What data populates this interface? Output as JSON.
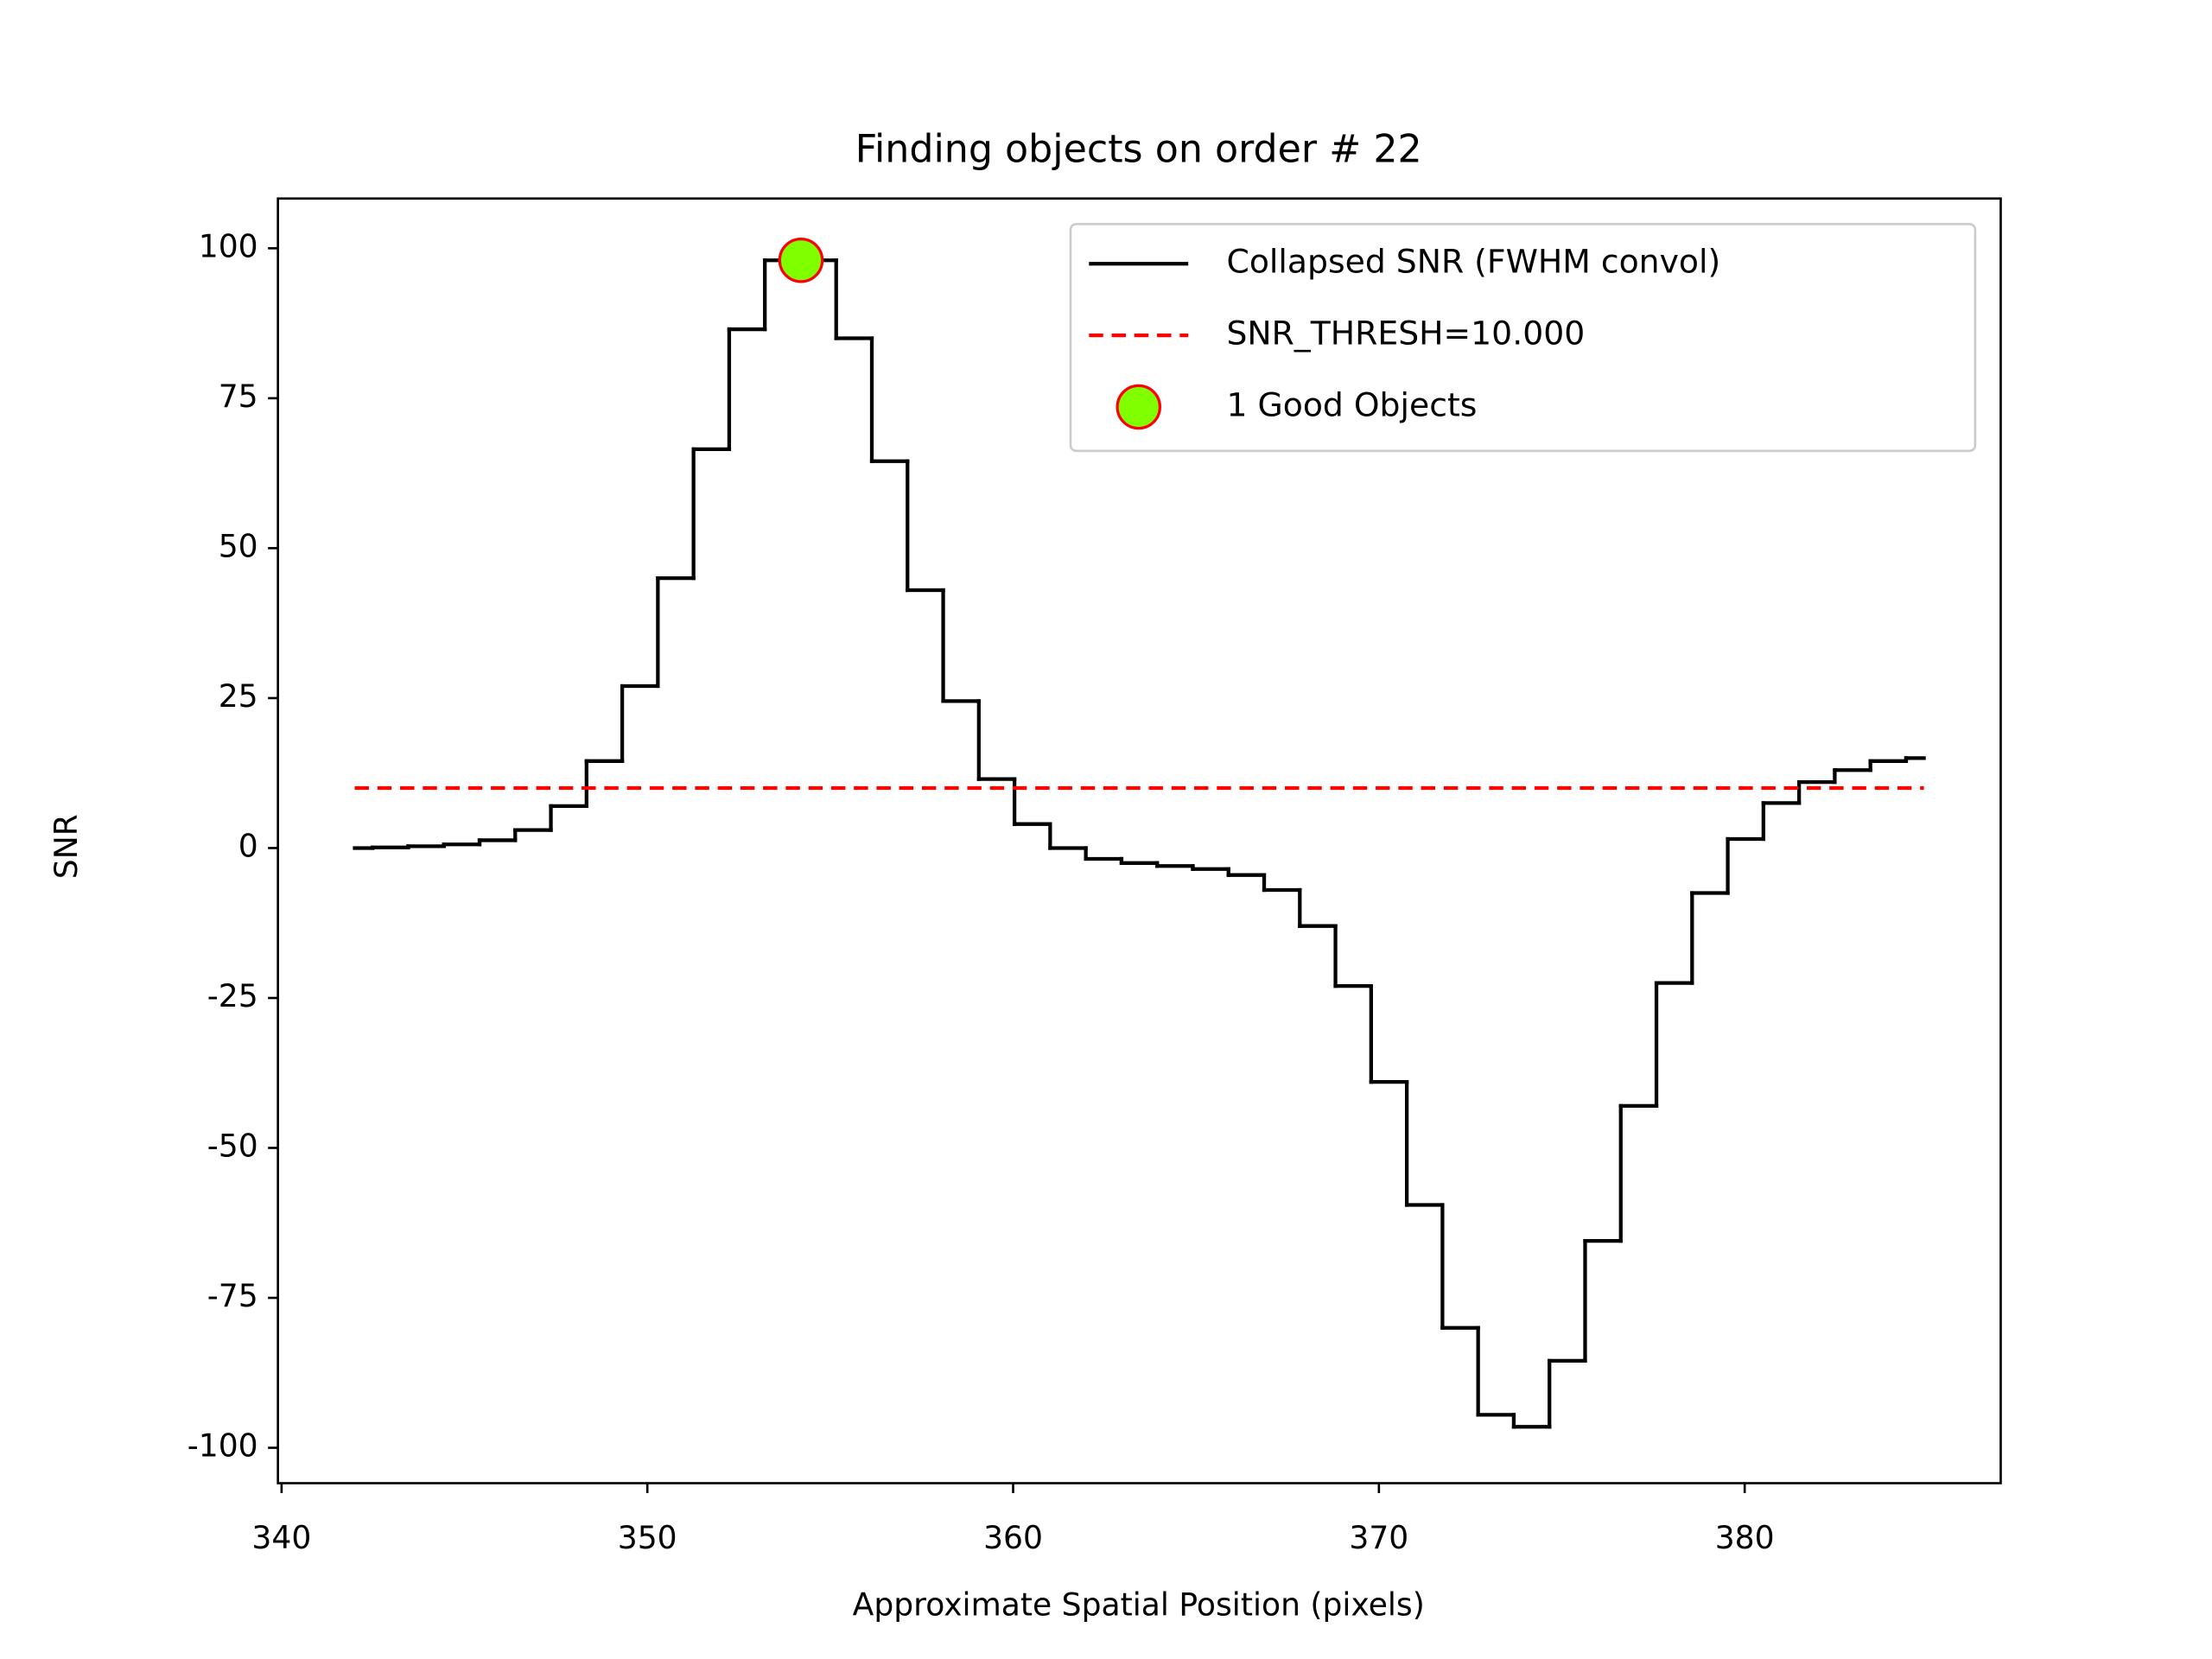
{
  "chart_data": {
    "type": "step",
    "title": "Finding objects on order # 22",
    "x_label": "Approximate Spatial Position (pixels)",
    "y_label": "SNR",
    "xlim": [
      339.9,
      387.0
    ],
    "xticks": [
      340,
      350,
      360,
      370,
      380
    ],
    "ylim": [
      -105.9,
      108.3
    ],
    "yticks": [
      -100,
      -75,
      -50,
      -25,
      0,
      25,
      50,
      75,
      100
    ],
    "legend": "upper right",
    "series": [
      {
        "name": "Collapsed SNR (FWHM convol)",
        "color": "#000000",
        "style": "step",
        "x": [
          342,
          342.975,
          343.95,
          344.925,
          345.9,
          346.875,
          347.85,
          348.825,
          349.8,
          350.775,
          351.75,
          352.725,
          353.7,
          354.675,
          355.65,
          356.625,
          357.6,
          358.575,
          359.55,
          360.525,
          361.5,
          362.475,
          363.45,
          364.425,
          365.4,
          366.375,
          367.35,
          368.325,
          369.3,
          370.275,
          371.25,
          372.225,
          373.2,
          374.175,
          375.15,
          376.125,
          377.1,
          378.075,
          379.05,
          380.025,
          381.0,
          381.975,
          382.95,
          383.925,
          384.9
        ],
        "values": [
          0,
          0.1,
          0.3,
          0.6,
          1.3,
          3,
          7,
          14.5,
          27,
          45,
          66.5,
          86.5,
          98,
          98,
          85,
          64.5,
          43,
          24.5,
          11.5,
          4,
          0,
          -1.8,
          -2.5,
          -3,
          -3.5,
          -4.5,
          -7,
          -13,
          -23,
          -39,
          -59.5,
          -80,
          -94.5,
          -96.5,
          -85.5,
          -65.5,
          -43,
          -22.5,
          -7.5,
          1.5,
          7.5,
          11,
          13,
          14.5,
          15
        ]
      },
      {
        "name": "SNR_THRESH=10.000",
        "color": "#ff0000",
        "style": "dashed",
        "x": [
          342,
          384.9
        ],
        "values": [
          10,
          10
        ]
      },
      {
        "name": "1 Good Objects",
        "color": "#7fff00",
        "edgecolor": "#ff0000",
        "style": "marker",
        "x": [
          354.2
        ],
        "values": [
          98
        ]
      }
    ]
  }
}
